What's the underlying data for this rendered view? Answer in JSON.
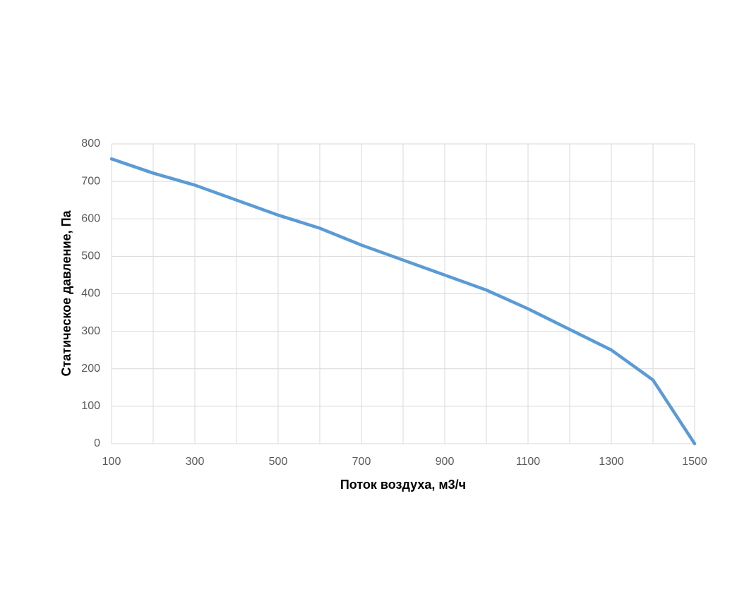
{
  "chart_data": {
    "type": "line",
    "x_label": "Поток воздуха, м3/ч",
    "y_label": "Статическое давление, Па",
    "x": [
      100,
      200,
      300,
      400,
      500,
      600,
      700,
      800,
      900,
      1000,
      1100,
      1200,
      1300,
      1400,
      1500
    ],
    "series": [
      {
        "name": "Статическое давление",
        "color": "#5b9bd5",
        "values": [
          760,
          722,
          690,
          650,
          610,
          575,
          530,
          490,
          450,
          410,
          360,
          305,
          250,
          170,
          0
        ]
      }
    ],
    "xlim": [
      100,
      1500
    ],
    "xticks": [
      100,
      300,
      500,
      700,
      900,
      1100,
      1300,
      1500
    ],
    "xminorticks": [
      200,
      400,
      600,
      800,
      1000,
      1200,
      1400
    ],
    "ylim": [
      0,
      800
    ],
    "yticks": [
      0,
      100,
      200,
      300,
      400,
      500,
      600,
      700,
      800
    ],
    "grid": true
  }
}
